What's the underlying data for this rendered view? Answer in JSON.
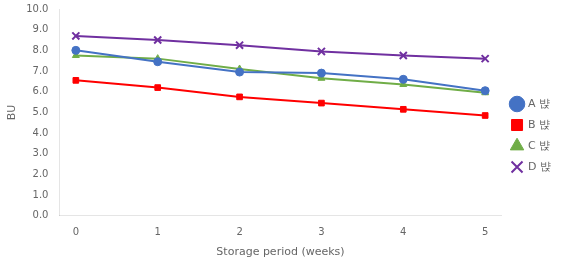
{
  "chart_data": {
    "type": "line",
    "x_label": "Storage period (weeks)",
    "y_label": "BU",
    "x": [
      0,
      1,
      2,
      3,
      4,
      5
    ],
    "series": [
      {
        "name": "A 뱑",
        "color": "#4472C4",
        "marker": "circle",
        "values": [
          8.0,
          7.45,
          6.95,
          6.9,
          6.6,
          6.05
        ]
      },
      {
        "name": "B 뱑",
        "color": "#FF0000",
        "marker": "square",
        "values": [
          6.55,
          6.2,
          5.75,
          5.45,
          5.15,
          4.85
        ]
      },
      {
        "name": "C 뱑",
        "color": "#70AD47",
        "marker": "triangle",
        "values": [
          7.75,
          7.6,
          7.1,
          6.65,
          6.35,
          5.95
        ]
      },
      {
        "name": "D 뱑",
        "color": "#7030A0",
        "marker": "x",
        "values": [
          8.7,
          8.5,
          8.25,
          7.95,
          7.75,
          7.6
        ]
      }
    ],
    "xlim": [
      -0.2,
      5.2
    ],
    "xticks": [
      0,
      1,
      2,
      3,
      4,
      5
    ],
    "ylim": [
      0,
      10
    ],
    "yticks": [
      {
        "value": 0,
        "label": "0.0"
      },
      {
        "value": 1,
        "label": "1.0"
      },
      {
        "value": 2,
        "label": "2.0"
      },
      {
        "value": 3,
        "label": "3.0"
      },
      {
        "value": 4,
        "label": "4.0"
      },
      {
        "value": 5,
        "label": "5.0"
      },
      {
        "value": 6,
        "label": "6.0"
      },
      {
        "value": 7,
        "label": "7.0"
      },
      {
        "value": 8,
        "label": "8.0"
      },
      {
        "value": 9,
        "label": "9.0"
      },
      {
        "value": 10,
        "label": "10.0"
      }
    ],
    "grid": false,
    "legend": "right",
    "background_color": "#ffffff"
  }
}
